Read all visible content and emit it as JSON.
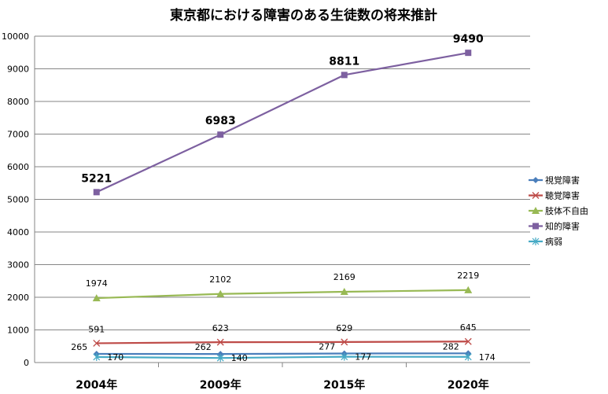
{
  "chart_data": {
    "type": "line",
    "title": "東京都における障害のある生徒数の将来推計",
    "categories": [
      "2004年",
      "2009年",
      "2015年",
      "2020年"
    ],
    "ylim": [
      0,
      10000
    ],
    "yticks": [
      "0",
      "1000",
      "2000",
      "3000",
      "4000",
      "5000",
      "6000",
      "7000",
      "8000",
      "9000",
      "10000"
    ],
    "grid": true,
    "legend": "right",
    "series": [
      {
        "name": "視覚障害",
        "values": [
          265,
          262,
          277,
          282
        ],
        "color": "#4a7ebb",
        "marker": "diamond"
      },
      {
        "name": "聴覚障害",
        "values": [
          591,
          623,
          629,
          645
        ],
        "color": "#be4b48",
        "marker": "x"
      },
      {
        "name": "肢体不自由",
        "values": [
          1974,
          2102,
          2169,
          2219
        ],
        "color": "#98b954",
        "marker": "triangle"
      },
      {
        "name": "知的障害",
        "values": [
          5221,
          6983,
          8811,
          9490
        ],
        "color": "#7d60a0",
        "marker": "square"
      },
      {
        "name": "病弱",
        "values": [
          170,
          140,
          177,
          174
        ],
        "color": "#46aac5",
        "marker": "star"
      }
    ]
  }
}
